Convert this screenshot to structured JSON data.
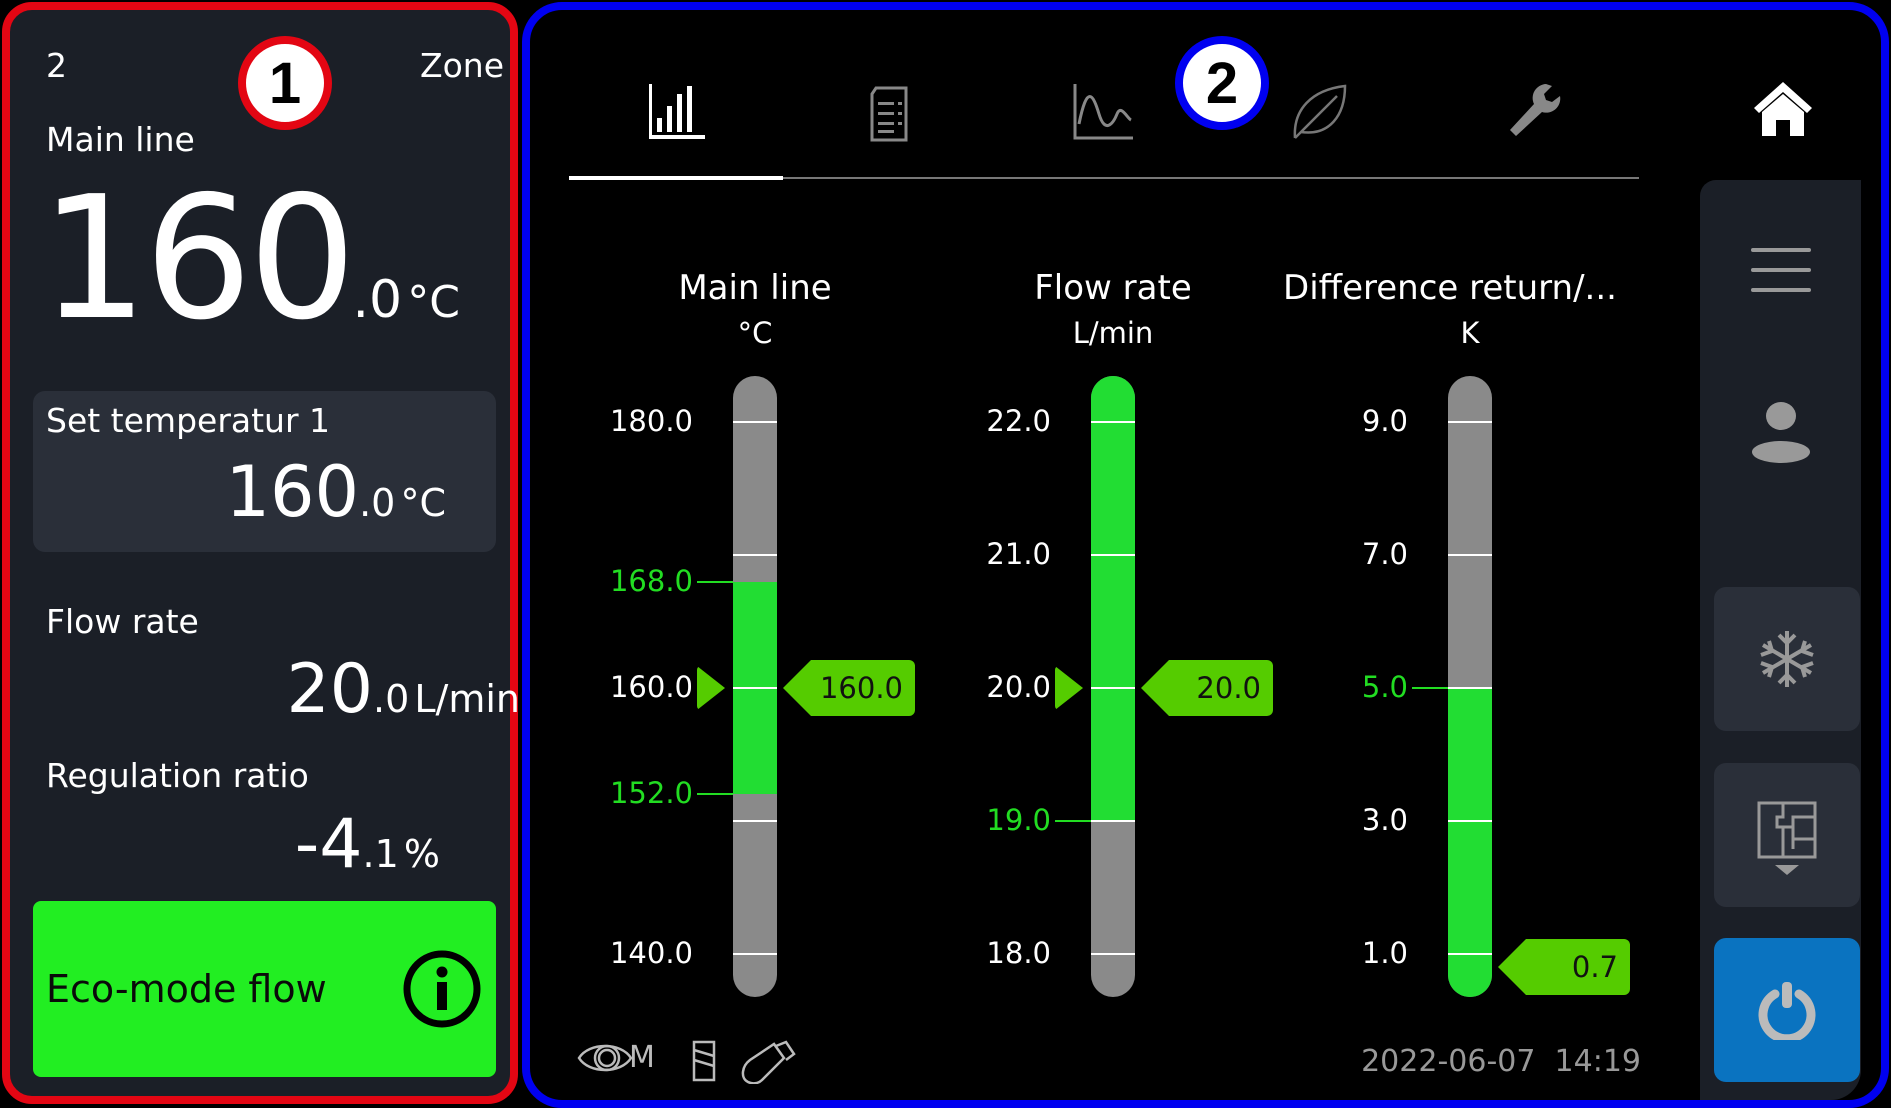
{
  "callouts": [
    "1",
    "2"
  ],
  "left_panel": {
    "zone_number": "2",
    "zone_label": "Zone",
    "main_line": {
      "label": "Main line",
      "int": "160",
      "dec": ".0",
      "unit": "°C"
    },
    "set_temperature": {
      "label": "Set temperatur 1",
      "int": "160",
      "dec": ".0",
      "unit": "°C"
    },
    "flow_rate": {
      "label": "Flow rate",
      "int": "20",
      "dec": ".0",
      "unit": "L/min"
    },
    "regulation_ratio": {
      "label": "Regulation ratio",
      "int": "-4",
      "dec": ".1",
      "unit": "%"
    },
    "eco_button": {
      "label": "Eco-mode flow",
      "icon": "info-icon",
      "color": "#22ee22"
    }
  },
  "tabs": [
    {
      "icon": "bar-chart-icon",
      "active": true
    },
    {
      "icon": "document-list-icon",
      "active": false
    },
    {
      "icon": "line-chart-icon",
      "active": false
    },
    {
      "icon": "leaf-icon",
      "active": false
    },
    {
      "icon": "wrench-icon",
      "active": false
    }
  ],
  "sidebar": {
    "items": [
      "home-icon",
      "menu-icon",
      "user-icon",
      "snowflake-icon",
      "floor-plan-icon",
      "power-icon"
    ],
    "power_color": "#0a73c0"
  },
  "gauges": [
    {
      "title": "Main line",
      "unit": "°C",
      "min": 140,
      "max": 180,
      "ticks": [
        140,
        150,
        160,
        170,
        180
      ],
      "labels": [
        {
          "v": 180,
          "t": "180.0"
        },
        {
          "v": 168,
          "t": "168.0",
          "hl": true
        },
        {
          "v": 160,
          "t": "160.0"
        },
        {
          "v": 152,
          "t": "152.0",
          "hl": true
        },
        {
          "v": 140,
          "t": "140.0"
        }
      ],
      "green_from": 152,
      "green_to": 168,
      "value": 160,
      "value_text": "160.0",
      "setpoint": 160
    },
    {
      "title": "Flow rate",
      "unit": "L/min",
      "min": 18,
      "max": 22,
      "ticks": [
        18,
        19,
        20,
        21,
        22
      ],
      "labels": [
        {
          "v": 22,
          "t": "22.0"
        },
        {
          "v": 21,
          "t": "21.0"
        },
        {
          "v": 20,
          "t": "20.0"
        },
        {
          "v": 19,
          "t": "19.0",
          "hl": true
        },
        {
          "v": 18,
          "t": "18.0"
        }
      ],
      "green_from": 19,
      "green_to": "top",
      "value": 20,
      "value_text": "20.0",
      "setpoint": 20
    },
    {
      "title": "Difference return/...",
      "unit": "K",
      "min": 1,
      "max": 9,
      "ticks": [
        1,
        3,
        5,
        7,
        9
      ],
      "labels": [
        {
          "v": 9,
          "t": "9.0"
        },
        {
          "v": 7,
          "t": "7.0"
        },
        {
          "v": 5,
          "t": "5.0",
          "hl": true
        },
        {
          "v": 3,
          "t": "3.0"
        },
        {
          "v": 1,
          "t": "1.0"
        }
      ],
      "green_from": "bottom",
      "green_to": 5,
      "value": 0.7,
      "value_text": "0.7",
      "setpoint": null
    }
  ],
  "status_bar": {
    "mode_letter": "M",
    "icons": [
      "eye-icon",
      "sd-card-icon",
      "usb-icon"
    ],
    "date": "2022-06-07",
    "time": "14:19"
  },
  "colors": {
    "green_fill": "#22dd33",
    "threshold_green": "#22dd22",
    "tag_green": "#55cc00",
    "bar_gray": "#8a8a8a"
  }
}
